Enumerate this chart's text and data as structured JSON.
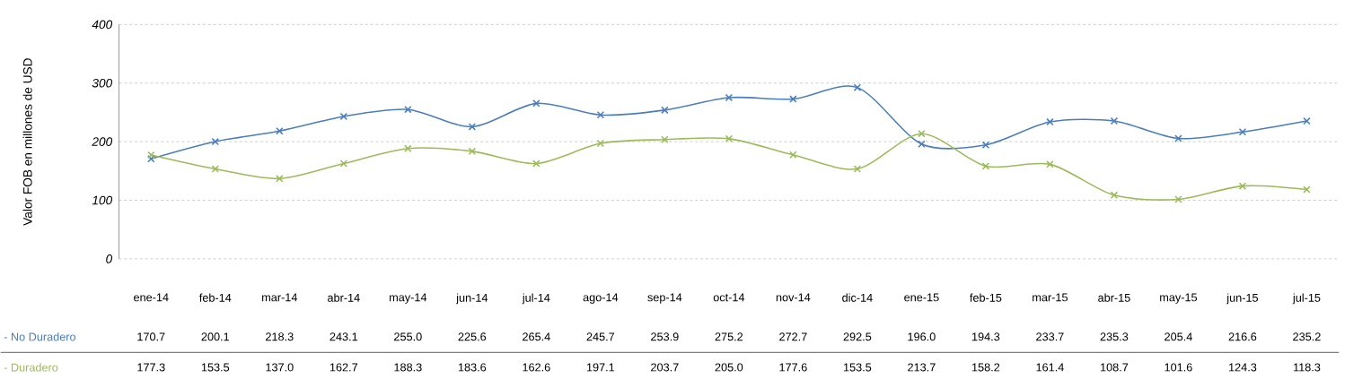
{
  "chart_data": {
    "type": "line",
    "ylabel": "Valor FOB en millones de  USD",
    "categories": [
      "ene-14",
      "feb-14",
      "mar-14",
      "abr-14",
      "may-14",
      "jun-14",
      "jul-14",
      "ago-14",
      "sep-14",
      "oct-14",
      "nov-14",
      "dic-14",
      "ene-15",
      "feb-15",
      "mar-15",
      "abr-15",
      "may-15",
      "jun-15",
      "jul-15"
    ],
    "series": [
      {
        "name": "- No Duradero",
        "color": "#4a7ebb",
        "values": [
          170.7,
          200.1,
          218.3,
          243.1,
          255.0,
          225.6,
          265.4,
          245.7,
          253.9,
          275.2,
          272.7,
          292.5,
          196.0,
          194.3,
          233.7,
          235.3,
          205.4,
          216.6,
          235.2
        ],
        "value_labels": [
          "170.7",
          "200.1",
          "218.3",
          "243.1",
          "255.0",
          "225.6",
          "265.4",
          "245.7",
          "253.9",
          "275.2",
          "272.7",
          "292.5",
          "196.0",
          "194.3",
          "233.7",
          "235.3",
          "205.4",
          "216.6",
          "235.2"
        ]
      },
      {
        "name": "- Duradero",
        "color": "#9bbb59",
        "values": [
          177.3,
          153.5,
          137.0,
          162.7,
          188.3,
          183.6,
          162.6,
          197.1,
          203.7,
          205.0,
          177.6,
          153.5,
          213.7,
          158.2,
          161.4,
          108.7,
          101.6,
          124.3,
          118.3
        ],
        "value_labels": [
          "177.3",
          "153.5",
          "137.0",
          "162.7",
          "188.3",
          "183.6",
          "162.6",
          "197.1",
          "203.7",
          "205.0",
          "177.6",
          "153.5",
          "213.7",
          "158.2",
          "161.4",
          "108.7",
          "101.6",
          "124.3",
          "118.3"
        ]
      }
    ],
    "ylim": [
      0,
      400
    ],
    "yticks": [
      0,
      100,
      200,
      300,
      400
    ],
    "grid": "y",
    "marker": "cross",
    "line_style": "solid"
  }
}
